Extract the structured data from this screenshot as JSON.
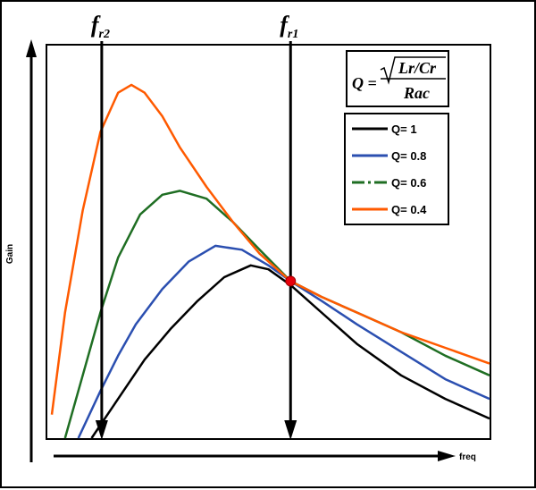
{
  "chart_data": {
    "type": "line",
    "xlabel": "freq",
    "ylabel": "Gain",
    "grid": false,
    "markers": [
      {
        "main": "f",
        "sub": "r2",
        "x": 0.123
      },
      {
        "main": "f",
        "sub": "r1",
        "x": 0.55
      }
    ],
    "formula": {
      "lhs": "Q =",
      "radicand": "Lr/Cr",
      "denominator": "Rac"
    },
    "legend_position": "top-right",
    "series": [
      {
        "name": "Q= 1",
        "color": "#000000",
        "dash": "solid",
        "points": [
          [
            0.1,
            0.0
          ],
          [
            0.16,
            0.1
          ],
          [
            0.22,
            0.2
          ],
          [
            0.28,
            0.28
          ],
          [
            0.34,
            0.35
          ],
          [
            0.4,
            0.41
          ],
          [
            0.46,
            0.44
          ],
          [
            0.5,
            0.43
          ],
          [
            0.55,
            0.39
          ],
          [
            0.62,
            0.32
          ],
          [
            0.7,
            0.24
          ],
          [
            0.8,
            0.16
          ],
          [
            0.9,
            0.1
          ],
          [
            1.0,
            0.05
          ]
        ]
      },
      {
        "name": "Q= 0.8",
        "color": "#2b4fb0",
        "dash": "solid",
        "points": [
          [
            0.07,
            0.0
          ],
          [
            0.12,
            0.12
          ],
          [
            0.16,
            0.21
          ],
          [
            0.2,
            0.29
          ],
          [
            0.26,
            0.38
          ],
          [
            0.32,
            0.45
          ],
          [
            0.38,
            0.49
          ],
          [
            0.44,
            0.48
          ],
          [
            0.5,
            0.44
          ],
          [
            0.55,
            0.4
          ],
          [
            0.62,
            0.35
          ],
          [
            0.7,
            0.29
          ],
          [
            0.8,
            0.22
          ],
          [
            0.9,
            0.15
          ],
          [
            1.0,
            0.1
          ]
        ]
      },
      {
        "name": "Q= 0.6",
        "color": "#1f6e23",
        "dash": "dashdot",
        "points": [
          [
            0.04,
            0.0
          ],
          [
            0.08,
            0.16
          ],
          [
            0.12,
            0.32
          ],
          [
            0.16,
            0.46
          ],
          [
            0.21,
            0.57
          ],
          [
            0.26,
            0.62
          ],
          [
            0.3,
            0.63
          ],
          [
            0.36,
            0.61
          ],
          [
            0.42,
            0.55
          ],
          [
            0.48,
            0.48
          ],
          [
            0.55,
            0.4
          ],
          [
            0.62,
            0.36
          ],
          [
            0.7,
            0.32
          ],
          [
            0.8,
            0.27
          ],
          [
            0.9,
            0.21
          ],
          [
            1.0,
            0.16
          ]
        ]
      },
      {
        "name": "Q= 0.4",
        "color": "#ff5a00",
        "dash": "solid",
        "points": [
          [
            0.01,
            0.06
          ],
          [
            0.04,
            0.32
          ],
          [
            0.08,
            0.58
          ],
          [
            0.12,
            0.78
          ],
          [
            0.16,
            0.88
          ],
          [
            0.19,
            0.9
          ],
          [
            0.22,
            0.88
          ],
          [
            0.26,
            0.82
          ],
          [
            0.3,
            0.74
          ],
          [
            0.36,
            0.64
          ],
          [
            0.42,
            0.55
          ],
          [
            0.48,
            0.47
          ],
          [
            0.55,
            0.4
          ],
          [
            0.62,
            0.36
          ],
          [
            0.7,
            0.32
          ],
          [
            0.8,
            0.27
          ],
          [
            0.9,
            0.23
          ],
          [
            1.0,
            0.19
          ]
        ]
      }
    ],
    "crossing_point": {
      "x": 0.55,
      "y": 0.4,
      "color": "#e8000b"
    }
  }
}
